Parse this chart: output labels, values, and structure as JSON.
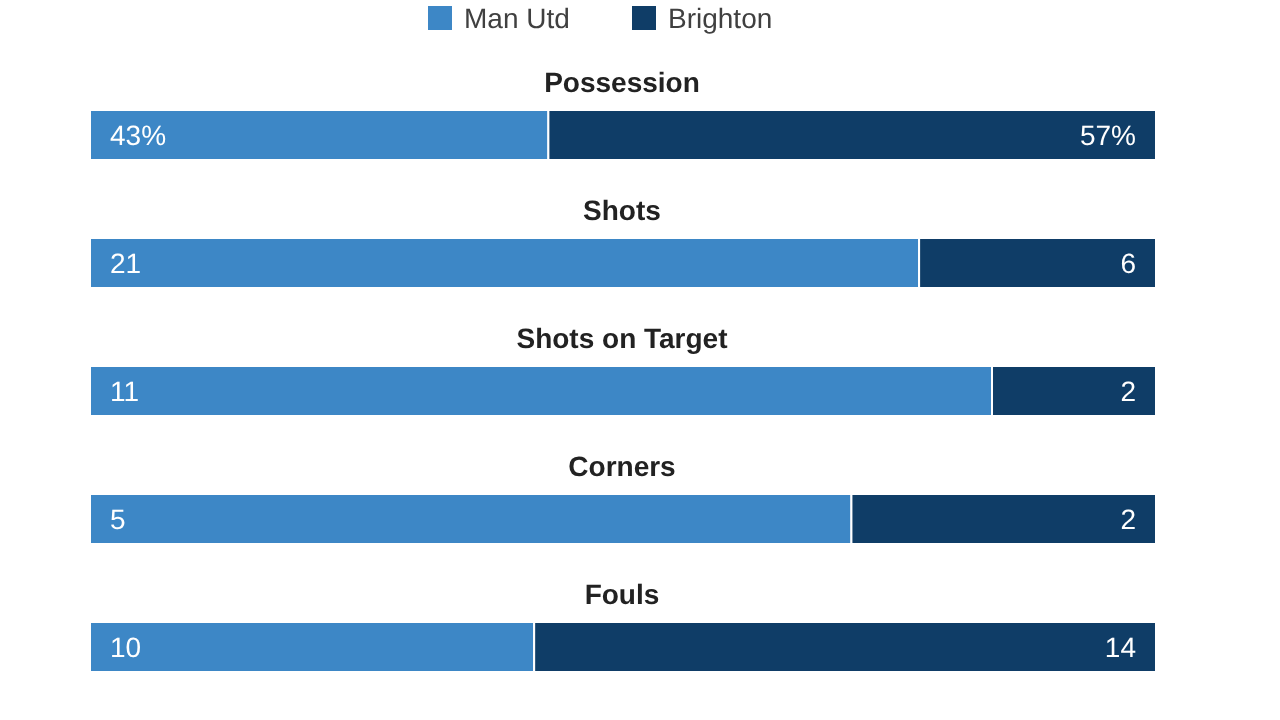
{
  "chart_data": [
    {
      "type": "bar",
      "orientation": "horizontal",
      "stacked": true,
      "title": "Possession",
      "categories": [
        null
      ],
      "xlim": [
        0,
        100
      ],
      "legend": "top",
      "series": [
        {
          "name": "Man Utd",
          "color": "#3d87c6",
          "values": [
            43
          ],
          "value_labels": [
            "43%"
          ]
        },
        {
          "name": "Brighton",
          "color": "#0f3d67",
          "values": [
            57
          ],
          "value_labels": [
            "57%"
          ]
        }
      ]
    },
    {
      "type": "bar",
      "orientation": "horizontal",
      "stacked": true,
      "title": "Shots",
      "categories": [
        null
      ],
      "xlim": [
        0,
        27
      ],
      "data_labels": true,
      "series": [
        {
          "color": "#3d87c6",
          "values": [
            21
          ]
        },
        {
          "color": "#0f3d67",
          "values": [
            6
          ]
        }
      ]
    },
    {
      "type": "bar",
      "orientation": "horizontal",
      "stacked": true,
      "title": "Shots on Target",
      "categories": [
        null
      ],
      "xlim": [
        0,
        13
      ],
      "data_labels": true,
      "series": [
        {
          "color": "#3d87c6",
          "values": [
            11
          ]
        },
        {
          "color": "#0f3d67",
          "values": [
            2
          ]
        }
      ]
    },
    {
      "type": "bar",
      "orientation": "horizontal",
      "stacked": true,
      "title": "Corners",
      "categories": [
        null
      ],
      "xlim": [
        0,
        7
      ],
      "data_labels": true,
      "series": [
        {
          "color": "#3d87c6",
          "values": [
            5
          ]
        },
        {
          "color": "#0f3d67",
          "values": [
            2
          ]
        }
      ]
    },
    {
      "type": "bar",
      "orientation": "horizontal",
      "stacked": true,
      "title": "Fouls",
      "categories": [
        null
      ],
      "xlim": [
        0,
        24
      ],
      "data_labels": true,
      "series": [
        {
          "color": "#3d87c6",
          "values": [
            10
          ]
        },
        {
          "color": "#0f3d67",
          "values": [
            14
          ]
        }
      ]
    }
  ]
}
